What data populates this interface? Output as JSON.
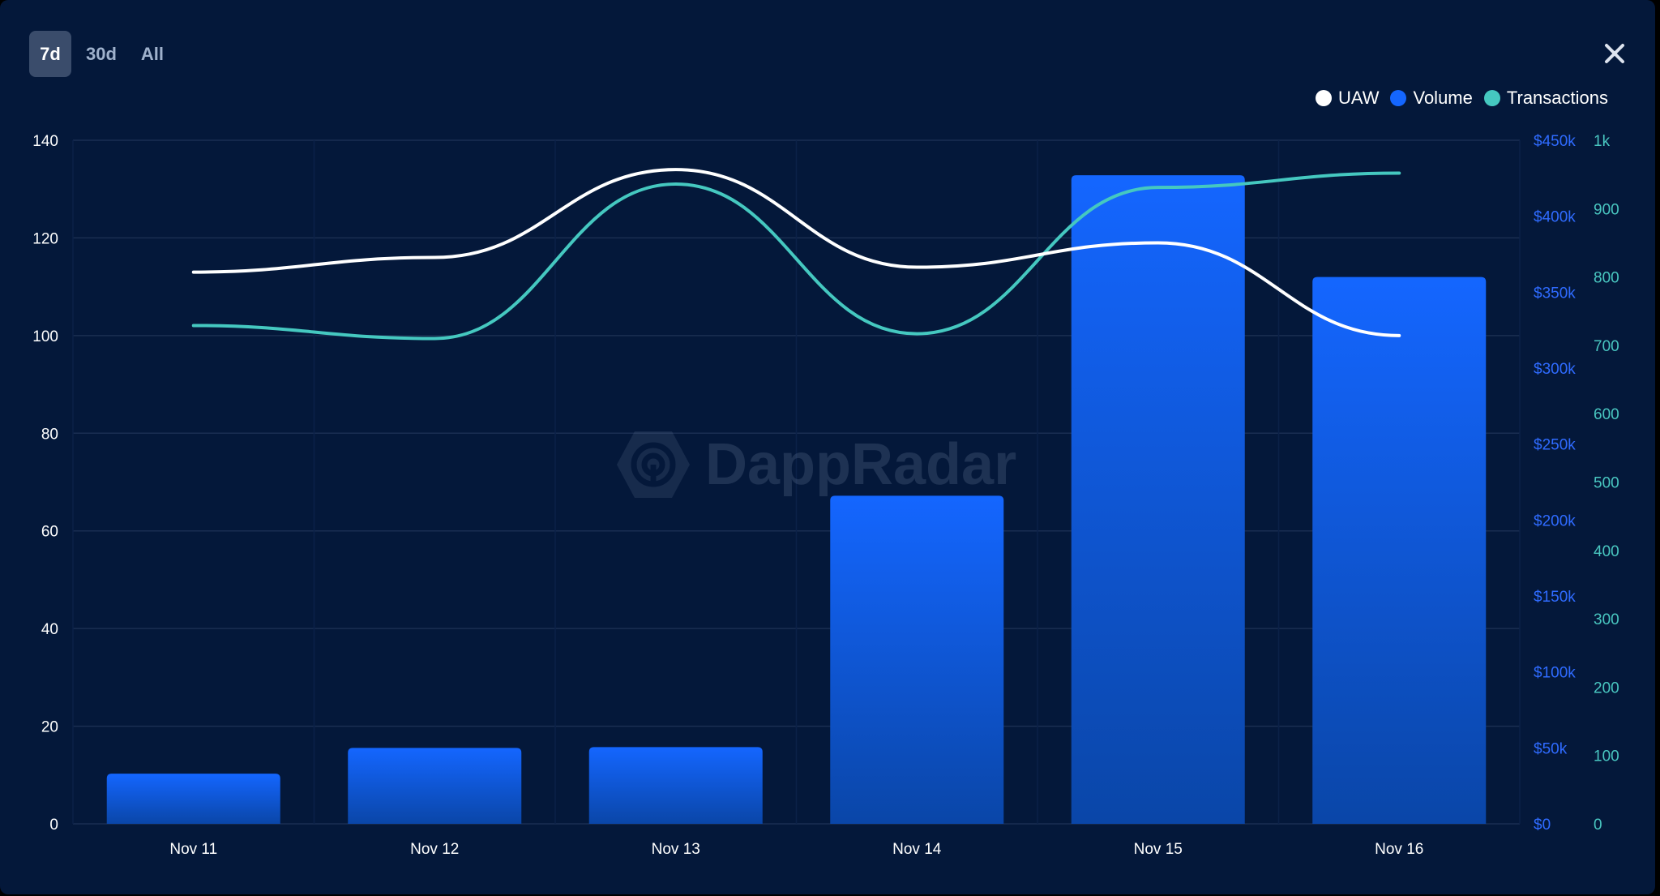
{
  "timeframes": {
    "options": [
      "7d",
      "30d",
      "All"
    ],
    "selected": "7d"
  },
  "colors": {
    "background": "#04183A",
    "grid": "#1A2E52",
    "uaw": "#FFFFFF",
    "volume": "#1466FF",
    "transactions": "#45C8C0",
    "axis_left": "#FFFFFF",
    "axis_volume": "#2F6BFF",
    "axis_transactions": "#49C6C0"
  },
  "icons": {
    "close": "close-icon",
    "watermark_logo": "dappradar-logo-icon"
  },
  "watermark": {
    "text": "DappRadar"
  },
  "chart_data": {
    "type": "bar",
    "categories": [
      "Nov 11",
      "Nov 12",
      "Nov 13",
      "Nov 14",
      "Nov 15",
      "Nov 16"
    ],
    "series": [
      {
        "name": "UAW",
        "type": "line",
        "axis": "left",
        "values": [
          113,
          116,
          134,
          114,
          119,
          100
        ]
      },
      {
        "name": "Volume",
        "type": "bar",
        "axis": "right-volume",
        "values": [
          33000,
          50000,
          50500,
          216000,
          427000,
          360000
        ]
      },
      {
        "name": "Transactions",
        "type": "line",
        "axis": "right-transactions",
        "values": [
          729,
          710,
          936,
          717,
          931,
          952
        ]
      }
    ],
    "axes": {
      "left": {
        "ylim": [
          0,
          140
        ],
        "ticks": [
          "0",
          "20",
          "40",
          "60",
          "80",
          "100",
          "120",
          "140"
        ]
      },
      "right_volume": {
        "ylim": [
          0,
          450000
        ],
        "ticks": [
          "$0",
          "$50k",
          "$100k",
          "$150k",
          "$200k",
          "$250k",
          "$300k",
          "$350k",
          "$400k",
          "$450k"
        ]
      },
      "right_transactions": {
        "ylim": [
          0,
          1000
        ],
        "ticks": [
          "0",
          "100",
          "200",
          "300",
          "400",
          "500",
          "600",
          "700",
          "800",
          "900",
          "1k"
        ]
      }
    },
    "legend": {
      "placement": "top-right",
      "entries": [
        "UAW",
        "Volume",
        "Transactions"
      ]
    },
    "grid": true,
    "title": "",
    "xlabel": "",
    "ylabel": ""
  }
}
